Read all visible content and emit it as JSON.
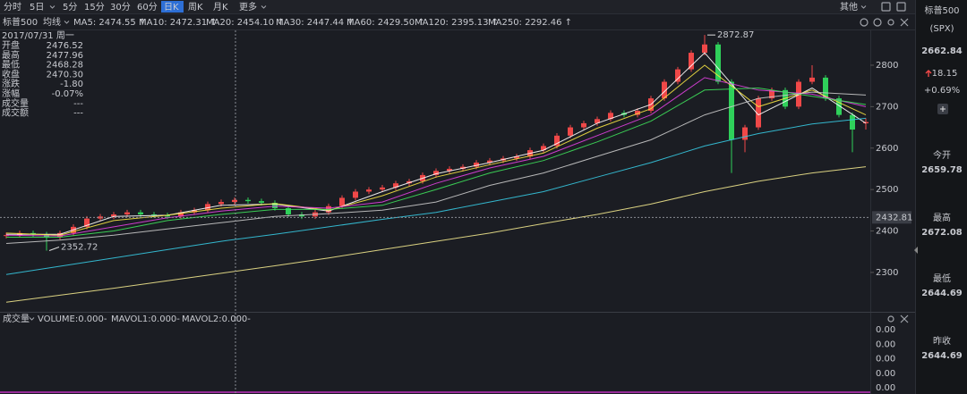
{
  "toolbar": {
    "tabs": [
      "分时",
      "5日",
      "5分",
      "15分",
      "30分",
      "60分",
      "日K",
      "周K",
      "月K",
      "更多"
    ],
    "active": 6,
    "other": "其他"
  },
  "legend": {
    "name": "标普500",
    "selector": "均线",
    "ma": [
      {
        "label": "MA5: 2474.55 ↑",
        "color": "#ffffff"
      },
      {
        "label": "MA10: 2472.31 ↑",
        "color": "#f5e342"
      },
      {
        "label": "MA20: 2454.10 ↑",
        "color": "#e040e0"
      },
      {
        "label": "MA30: 2447.44 ↑",
        "color": "#3ee05a"
      },
      {
        "label": "MA60: 2429.50 ↑",
        "color": "#c9c9c9"
      },
      {
        "label": "MA120: 2395.13 ↑",
        "color": "#36c8e0"
      },
      {
        "label": "MA250: 2292.46 ↑",
        "color": "#f0e68c"
      }
    ]
  },
  "info_panel": {
    "date": "2017/07/31 周一",
    "rows": [
      {
        "label": "开盘",
        "value": "2476.52"
      },
      {
        "label": "最高",
        "value": "2477.96"
      },
      {
        "label": "最低",
        "value": "2468.28"
      },
      {
        "label": "收盘",
        "value": "2470.30"
      },
      {
        "label": "涨跌",
        "value": "-1.80"
      },
      {
        "label": "涨幅",
        "value": "-0.07%"
      },
      {
        "label": "成交量",
        "value": "---"
      },
      {
        "label": "成交额",
        "value": "---"
      }
    ]
  },
  "price_chart": {
    "ylim": [
      2205,
      2884
    ],
    "yticks": [
      2300,
      2400,
      2500,
      2600,
      2700,
      2800
    ],
    "up_color": "#f04848",
    "down_color": "#2fd05a",
    "candles": [
      [
        2388,
        2396,
        2382,
        2390
      ],
      [
        2390,
        2401,
        2384,
        2395
      ],
      [
        2395,
        2401,
        2386,
        2392
      ],
      [
        2392,
        2398,
        2352.72,
        2385
      ],
      [
        2385,
        2401,
        2379,
        2395
      ],
      [
        2395,
        2416,
        2389,
        2410
      ],
      [
        2410,
        2436,
        2404,
        2430
      ],
      [
        2430,
        2441,
        2424,
        2435
      ],
      [
        2435,
        2446,
        2429,
        2440
      ],
      [
        2440,
        2451,
        2434,
        2445
      ],
      [
        2445,
        2451,
        2434,
        2440
      ],
      [
        2440,
        2446,
        2432,
        2438
      ],
      [
        2438,
        2444,
        2429,
        2435
      ],
      [
        2435,
        2451,
        2429,
        2445
      ],
      [
        2445,
        2456,
        2439,
        2450
      ],
      [
        2450,
        2471,
        2444,
        2465
      ],
      [
        2465,
        2476,
        2459,
        2470
      ],
      [
        2470,
        2481,
        2464,
        2475
      ],
      [
        2475,
        2481,
        2466,
        2472
      ],
      [
        2472,
        2478,
        2462,
        2468
      ],
      [
        2468,
        2474,
        2449,
        2455
      ],
      [
        2455,
        2461,
        2434,
        2440
      ],
      [
        2440,
        2446,
        2429,
        2435
      ],
      [
        2435,
        2451,
        2429,
        2445
      ],
      [
        2445,
        2466,
        2439,
        2460
      ],
      [
        2460,
        2486,
        2454,
        2480
      ],
      [
        2480,
        2501,
        2474,
        2495
      ],
      [
        2495,
        2506,
        2489,
        2500
      ],
      [
        2500,
        2511,
        2494,
        2505
      ],
      [
        2505,
        2521,
        2499,
        2515
      ],
      [
        2515,
        2526,
        2509,
        2520
      ],
      [
        2520,
        2541,
        2514,
        2535
      ],
      [
        2535,
        2551,
        2529,
        2545
      ],
      [
        2545,
        2556,
        2539,
        2550
      ],
      [
        2550,
        2561,
        2544,
        2555
      ],
      [
        2555,
        2571,
        2549,
        2565
      ],
      [
        2565,
        2576,
        2559,
        2570
      ],
      [
        2570,
        2581,
        2564,
        2575
      ],
      [
        2575,
        2586,
        2569,
        2580
      ],
      [
        2580,
        2601,
        2574,
        2595
      ],
      [
        2595,
        2611,
        2589,
        2605
      ],
      [
        2605,
        2636,
        2599,
        2630
      ],
      [
        2630,
        2656,
        2624,
        2650
      ],
      [
        2650,
        2666,
        2644,
        2660
      ],
      [
        2660,
        2676,
        2654,
        2670
      ],
      [
        2670,
        2691,
        2664,
        2685
      ],
      [
        2685,
        2691,
        2674,
        2680
      ],
      [
        2680,
        2696,
        2674,
        2690
      ],
      [
        2690,
        2726,
        2684,
        2720
      ],
      [
        2720,
        2766,
        2714,
        2760
      ],
      [
        2760,
        2796,
        2754,
        2790
      ],
      [
        2790,
        2836,
        2784,
        2830
      ],
      [
        2830,
        2872.87,
        2824,
        2850
      ],
      [
        2850,
        2856,
        2754,
        2760
      ],
      [
        2760,
        2766,
        2540,
        2620
      ],
      [
        2620,
        2656,
        2590,
        2650
      ],
      [
        2650,
        2726,
        2644,
        2720
      ],
      [
        2720,
        2746,
        2714,
        2740
      ],
      [
        2740,
        2746,
        2694,
        2700
      ],
      [
        2700,
        2766,
        2694,
        2760
      ],
      [
        2760,
        2800,
        2754,
        2770
      ],
      [
        2770,
        2776,
        2714,
        2720
      ],
      [
        2720,
        2726,
        2674,
        2680
      ],
      [
        2680,
        2686,
        2590,
        2644.69
      ],
      [
        2659.78,
        2672.08,
        2644.69,
        2662.84
      ]
    ],
    "ma_lines": [
      [
        2392,
        2392,
        2435,
        2438,
        2462,
        2465,
        2448,
        2495,
        2538,
        2565,
        2595,
        2660,
        2705,
        2830,
        2680,
        2745,
        2660
      ],
      [
        2395,
        2390,
        2425,
        2438,
        2455,
        2466,
        2450,
        2485,
        2530,
        2560,
        2588,
        2648,
        2695,
        2800,
        2700,
        2740,
        2680
      ],
      [
        2390,
        2388,
        2410,
        2432,
        2448,
        2460,
        2455,
        2470,
        2515,
        2552,
        2580,
        2630,
        2680,
        2770,
        2740,
        2730,
        2700
      ],
      [
        2385,
        2385,
        2400,
        2425,
        2440,
        2452,
        2452,
        2462,
        2500,
        2540,
        2570,
        2615,
        2665,
        2740,
        2745,
        2725,
        2705
      ],
      [
        2370,
        2378,
        2390,
        2405,
        2420,
        2435,
        2442,
        2450,
        2470,
        2510,
        2540,
        2580,
        2620,
        2680,
        2720,
        2735,
        2728
      ],
      [
        2295,
        2315,
        2335,
        2355,
        2375,
        2392,
        2410,
        2428,
        2445,
        2470,
        2495,
        2530,
        2565,
        2605,
        2635,
        2658,
        2672
      ],
      [
        2228,
        2245,
        2262,
        2280,
        2298,
        2316,
        2335,
        2355,
        2375,
        2395,
        2418,
        2440,
        2465,
        2495,
        2520,
        2540,
        2555
      ]
    ],
    "high_label": "2872.87",
    "high": 2872.87,
    "low_label": "2352.72",
    "low": 2352.72,
    "crosshair_label": "2432.81",
    "crosshair": 2432.81
  },
  "volume_panel": {
    "name": "成交量",
    "volume": "VOLUME:0.000-",
    "mavol1": "MAVOL1:0.000-",
    "mavol2": "MAVOL2:0.000-",
    "axis": [
      "0.00",
      "0.00",
      "0.00",
      "0.00",
      "0.00"
    ]
  },
  "sidebar": {
    "name": "标普500",
    "code": "(SPX)",
    "price": "2662.84",
    "change": "18.15",
    "change_pct": "+0.69%",
    "stats": [
      {
        "label": "今开",
        "value": "2659.78"
      },
      {
        "label": "最高",
        "value": "2672.08"
      },
      {
        "label": "最低",
        "value": "2644.69"
      },
      {
        "label": "昨收",
        "value": "2644.69"
      }
    ]
  }
}
